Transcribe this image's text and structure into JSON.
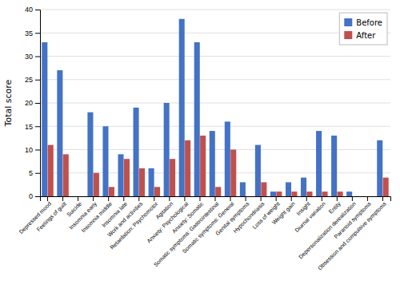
{
  "chart_data": {
    "type": "bar",
    "ylabel": "Total score",
    "categories": [
      "Depressed mood",
      "Feelings of guilt",
      "Suicide",
      "Insomnia early",
      "Insomnia middle",
      "Insomnia late",
      "Work and activities",
      "Retardation: Psychomotor",
      "Agitation",
      "Anxiety: Psychological",
      "Anxiety: Somatic",
      "Somatic symptoms: Gastrointestinal",
      "Somatic symptoms: General",
      "Genital symptoms",
      "Hypochondriasis",
      "Loss of weight",
      "Weight gain",
      "Insight",
      "Diurnal variation",
      "Entity",
      "Depersonalization derealization",
      "Paranoid symptoms",
      "Obsession and compulsive symptoms"
    ],
    "series": [
      {
        "name": "Before",
        "color": "#4472C4",
        "values": [
          33,
          27,
          0,
          18,
          15,
          9,
          19,
          6,
          20,
          38,
          33,
          14,
          16,
          3,
          11,
          1,
          3,
          4,
          14,
          13,
          1,
          0,
          12
        ]
      },
      {
        "name": "After",
        "color": "#C0504D",
        "values": [
          11,
          9,
          0,
          5,
          2,
          8,
          6,
          2,
          8,
          12,
          13,
          2,
          10,
          0,
          3,
          1,
          1,
          1,
          1,
          1,
          0,
          0,
          4
        ]
      }
    ],
    "ylim": [
      0,
      40
    ],
    "yticks": [
      0,
      5,
      10,
      15,
      20,
      25,
      30,
      35,
      40
    ],
    "grid": true,
    "legend": "upper right"
  }
}
